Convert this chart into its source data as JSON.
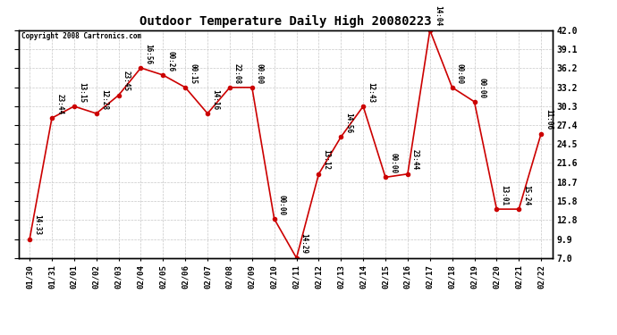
{
  "title": "Outdoor Temperature Daily High 20080223",
  "copyright": "Copyright 2008 Cartronics.com",
  "x_labels": [
    "01/30",
    "01/31",
    "02/01",
    "02/02",
    "02/03",
    "02/04",
    "02/05",
    "02/06",
    "02/07",
    "02/08",
    "02/09",
    "02/10",
    "02/11",
    "02/12",
    "02/13",
    "02/14",
    "02/15",
    "02/16",
    "02/17",
    "02/18",
    "02/19",
    "02/20",
    "02/21",
    "02/22"
  ],
  "y_values": [
    9.9,
    28.5,
    30.3,
    29.2,
    32.0,
    36.2,
    35.1,
    33.2,
    29.2,
    33.2,
    33.2,
    13.0,
    7.0,
    19.9,
    25.6,
    30.3,
    19.4,
    19.9,
    42.0,
    33.2,
    31.0,
    14.5,
    14.5,
    26.1
  ],
  "point_labels": [
    "14:33",
    "23:44",
    "13:15",
    "12:28",
    "23:45",
    "16:56",
    "00:26",
    "00:15",
    "14:16",
    "22:08",
    "00:00",
    "00:00",
    "14:29",
    "13:12",
    "14:56",
    "12:43",
    "00:00",
    "23:44",
    "14:04",
    "00:00",
    "00:00",
    "13:01",
    "15:24",
    "11:06"
  ],
  "line_color": "#cc0000",
  "marker_color": "#cc0000",
  "bg_color": "#ffffff",
  "grid_color": "#c8c8c8",
  "ylim": [
    7.0,
    42.0
  ],
  "ytick_labels": [
    "7.0",
    "9.9",
    "12.8",
    "15.8",
    "18.7",
    "21.6",
    "24.5",
    "27.4",
    "30.3",
    "33.2",
    "36.2",
    "39.1",
    "42.0"
  ],
  "ytick_values": [
    7.0,
    9.9,
    12.8,
    15.8,
    18.7,
    21.6,
    24.5,
    27.4,
    30.3,
    33.2,
    36.2,
    39.1,
    42.0
  ]
}
